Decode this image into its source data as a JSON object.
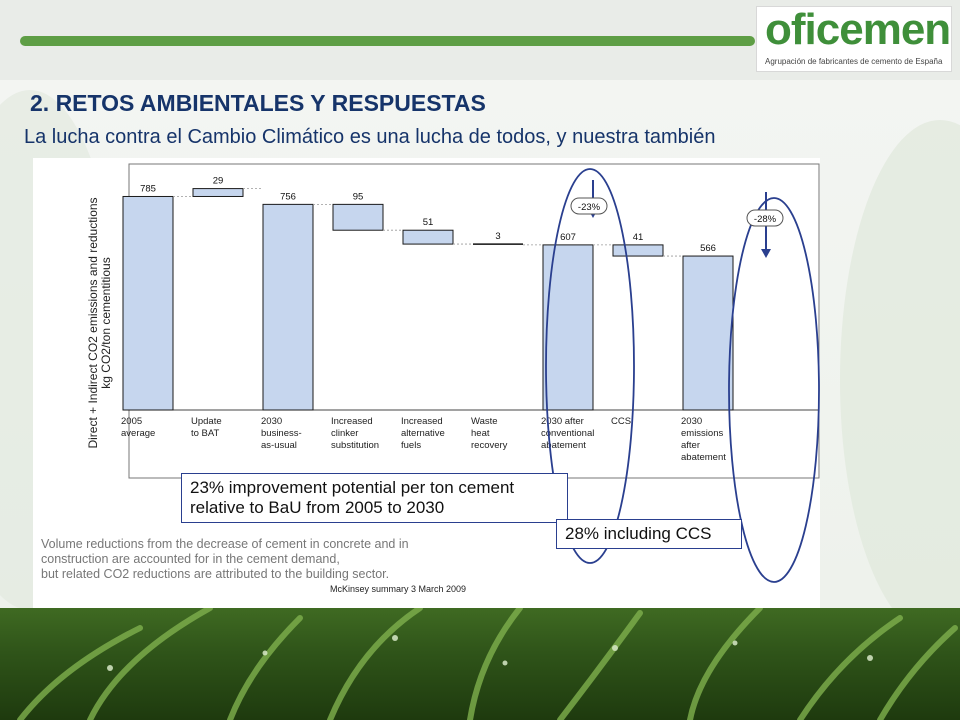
{
  "slide": {
    "title": "2. RETOS AMBIENTALES Y RESPUESTAS",
    "subtitle": "La lucha contra el Cambio Climático es una lucha de todos, y nuestra también"
  },
  "logo": {
    "name": "oficemen",
    "tagline": "Agrupación de fabricantes de cemento de España"
  },
  "chart_data": {
    "type": "bar",
    "ylabel": "Direct + Indirect CO2 emissions and reductions kg CO2/ton cementitious",
    "categories": [
      [
        "2005",
        "average"
      ],
      [
        "Update",
        "to BAT"
      ],
      [
        "2030",
        "business-",
        "as-usual"
      ],
      [
        "Increased",
        "clinker",
        "substitution"
      ],
      [
        "Increased",
        "alternative",
        "fuels"
      ],
      [
        "Waste",
        "heat",
        "recovery"
      ],
      [
        "2030 after",
        "conventional",
        "abatement"
      ],
      [
        "CCS"
      ],
      [
        "2030",
        "emissions",
        "after",
        "abatement"
      ]
    ],
    "values": [
      785,
      29,
      756,
      95,
      51,
      3,
      607,
      41,
      566
    ],
    "value_labels": [
      "785",
      "29",
      "756",
      "95",
      "51",
      "3",
      "607",
      "41",
      "566"
    ],
    "bar_kind": [
      "total",
      "step",
      "total",
      "step",
      "step",
      "step",
      "total",
      "step",
      "total"
    ],
    "annotations": [
      "-23%",
      "-28%"
    ],
    "bar_color": "#c6d6ee",
    "bar_stroke": "#1a1a1a",
    "highlight_color": "#2a3f8f"
  },
  "callouts": {
    "improvement_line1": "23% improvement potential per ton cement",
    "improvement_line2": "relative to BaU from 2005 to 2030",
    "ccs": "28% including CCS"
  },
  "footnote": {
    "line1": "Volume reductions from the decrease of cement in concrete and in",
    "line2": "construction are accounted for in the cement demand,",
    "line3": "but related CO2 reductions are attributed to the building sector."
  },
  "source": "McKinsey summary 3 March 2009"
}
